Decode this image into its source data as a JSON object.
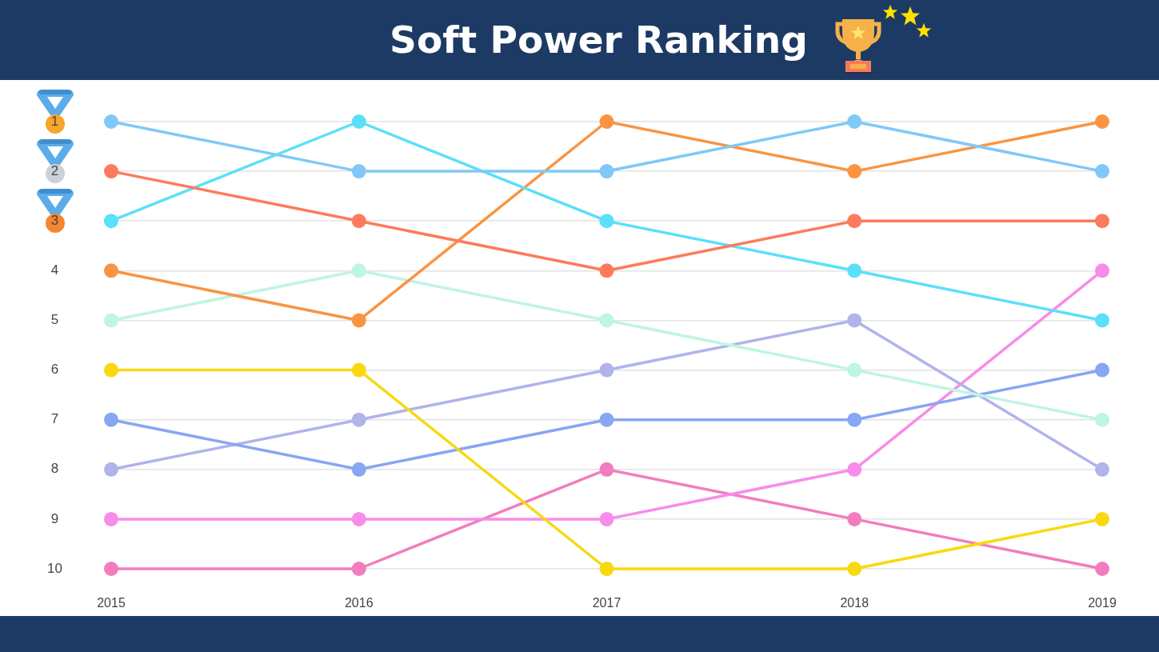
{
  "chart_data": {
    "type": "line",
    "title": "Soft Power Ranking",
    "categories": [
      "2015",
      "2016",
      "2017",
      "2018",
      "2019"
    ],
    "series": [
      {
        "color": "#80c8f8",
        "values": [
          1,
          2,
          2,
          1,
          2
        ]
      },
      {
        "color": "#fd7b5c",
        "values": [
          2,
          3,
          4,
          3,
          3
        ]
      },
      {
        "color": "#5ae0fa",
        "values": [
          3,
          1,
          3,
          4,
          5
        ]
      },
      {
        "color": "#fa9442",
        "values": [
          4,
          5,
          1,
          2,
          1
        ]
      },
      {
        "color": "#bff5e2",
        "values": [
          5,
          4,
          5,
          6,
          7
        ]
      },
      {
        "color": "#f8d90f",
        "values": [
          6,
          6,
          10,
          10,
          9
        ]
      },
      {
        "color": "#87a6f3",
        "values": [
          7,
          8,
          7,
          7,
          6
        ]
      },
      {
        "color": "#b0b4ea",
        "values": [
          8,
          7,
          6,
          5,
          8
        ]
      },
      {
        "color": "#f78cea",
        "values": [
          9,
          9,
          9,
          8,
          4
        ]
      },
      {
        "color": "#f27cbf",
        "values": [
          10,
          10,
          8,
          9,
          10
        ]
      }
    ],
    "ylim": [
      10,
      1
    ],
    "yticks": [
      1,
      2,
      3,
      4,
      5,
      6,
      7,
      8,
      9,
      10
    ],
    "grid": "y",
    "legend": false,
    "marker": "circle",
    "line_style": "solid"
  }
}
